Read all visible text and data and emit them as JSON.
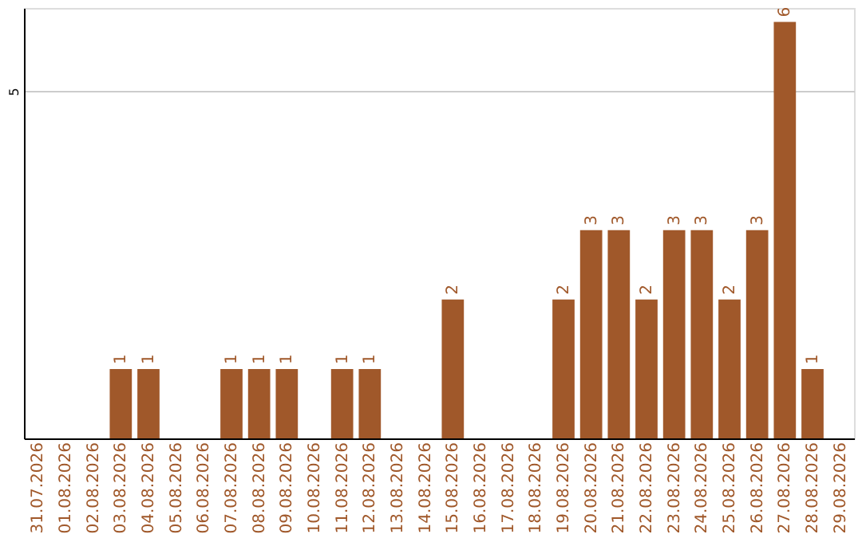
{
  "chart_data": {
    "type": "bar",
    "categories": [
      "31.07.2026",
      "01.08.2026",
      "02.08.2026",
      "03.08.2026",
      "04.08.2026",
      "05.08.2026",
      "06.08.2026",
      "07.08.2026",
      "08.08.2026",
      "09.08.2026",
      "10.08.2026",
      "11.08.2026",
      "12.08.2026",
      "13.08.2026",
      "14.08.2026",
      "15.08.2026",
      "16.08.2026",
      "17.08.2026",
      "18.08.2026",
      "19.08.2026",
      "20.08.2026",
      "21.08.2026",
      "22.08.2026",
      "23.08.2026",
      "24.08.2026",
      "25.08.2026",
      "26.08.2026",
      "27.08.2026",
      "28.08.2026",
      "29.08.2026"
    ],
    "values": [
      0,
      0,
      0,
      1,
      1,
      0,
      0,
      1,
      1,
      1,
      0,
      1,
      1,
      0,
      0,
      2,
      0,
      0,
      0,
      2,
      3,
      3,
      2,
      3,
      3,
      2,
      3,
      6,
      1,
      0
    ],
    "value_labels": [
      null,
      null,
      null,
      "1",
      "1",
      null,
      null,
      "1",
      "1",
      "1",
      null,
      "1",
      "1",
      null,
      null,
      "2",
      null,
      null,
      null,
      "2",
      "3",
      "3",
      "2",
      "3",
      "3",
      "2",
      "3",
      "6",
      "1",
      null
    ],
    "color": "#a0582a",
    "ylim": [
      0,
      6.2
    ],
    "yticks": [
      5
    ],
    "grid": "y"
  }
}
